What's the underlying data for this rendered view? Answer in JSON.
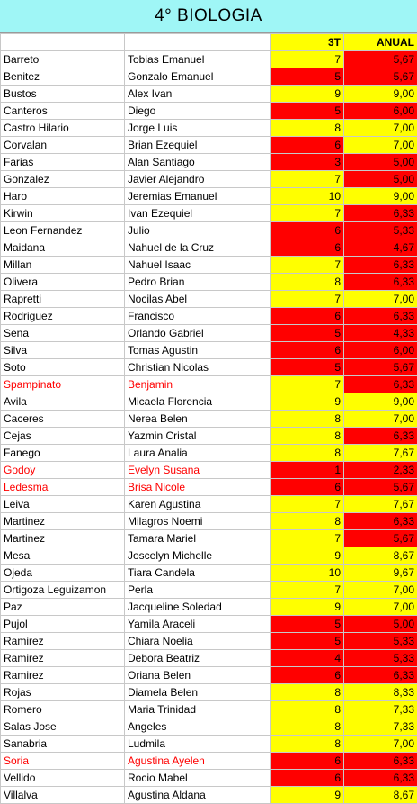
{
  "title": "4° BIOLOGIA",
  "colors": {
    "title_bg": "#9ff6f6",
    "pass": "#ffff00",
    "fail": "#ff0000",
    "flagged_text": "#ff0000"
  },
  "headers": {
    "apellido": "",
    "nombre": "",
    "trimestre": "3T",
    "anual": "ANUAL"
  },
  "rows": [
    {
      "apellido": "Barreto",
      "nombre": "Tobias Emanuel",
      "t3": "7",
      "anual": "5,67",
      "t3_status": "pass",
      "anual_status": "fail",
      "flagged": false
    },
    {
      "apellido": "Benitez",
      "nombre": "Gonzalo Emanuel",
      "t3": "5",
      "anual": "5,67",
      "t3_status": "fail",
      "anual_status": "fail",
      "flagged": false
    },
    {
      "apellido": "Bustos",
      "nombre": "Alex Ivan",
      "t3": "9",
      "anual": "9,00",
      "t3_status": "pass",
      "anual_status": "pass",
      "flagged": false
    },
    {
      "apellido": "Canteros",
      "nombre": "Diego",
      "t3": "5",
      "anual": "6,00",
      "t3_status": "fail",
      "anual_status": "fail",
      "flagged": false
    },
    {
      "apellido": "Castro Hilario",
      "nombre": "Jorge Luis",
      "t3": "8",
      "anual": "7,00",
      "t3_status": "pass",
      "anual_status": "pass",
      "flagged": false
    },
    {
      "apellido": "Corvalan",
      "nombre": "Brian Ezequiel",
      "t3": "6",
      "anual": "7,00",
      "t3_status": "fail",
      "anual_status": "pass",
      "flagged": false
    },
    {
      "apellido": "Farias",
      "nombre": "Alan Santiago",
      "t3": "3",
      "anual": "5,00",
      "t3_status": "fail",
      "anual_status": "fail",
      "flagged": false
    },
    {
      "apellido": "Gonzalez",
      "nombre": "Javier Alejandro",
      "t3": "7",
      "anual": "5,00",
      "t3_status": "pass",
      "anual_status": "fail",
      "flagged": false
    },
    {
      "apellido": "Haro",
      "nombre": "Jeremias Emanuel",
      "t3": "10",
      "anual": "9,00",
      "t3_status": "pass",
      "anual_status": "pass",
      "flagged": false
    },
    {
      "apellido": "Kirwin",
      "nombre": "Ivan Ezequiel",
      "t3": "7",
      "anual": "6,33",
      "t3_status": "pass",
      "anual_status": "fail",
      "flagged": false
    },
    {
      "apellido": "Leon Fernandez",
      "nombre": "Julio",
      "t3": "6",
      "anual": "5,33",
      "t3_status": "fail",
      "anual_status": "fail",
      "flagged": false
    },
    {
      "apellido": "Maidana",
      "nombre": "Nahuel de la Cruz",
      "t3": "6",
      "anual": "4,67",
      "t3_status": "fail",
      "anual_status": "fail",
      "flagged": false
    },
    {
      "apellido": "Millan",
      "nombre": "Nahuel Isaac",
      "t3": "7",
      "anual": "6,33",
      "t3_status": "pass",
      "anual_status": "fail",
      "flagged": false
    },
    {
      "apellido": "Olivera",
      "nombre": "Pedro Brian",
      "t3": "8",
      "anual": "6,33",
      "t3_status": "pass",
      "anual_status": "fail",
      "flagged": false
    },
    {
      "apellido": "Rapretti",
      "nombre": "Nocilas Abel",
      "t3": "7",
      "anual": "7,00",
      "t3_status": "pass",
      "anual_status": "pass",
      "flagged": false
    },
    {
      "apellido": "Rodriguez",
      "nombre": "Francisco",
      "t3": "6",
      "anual": "6,33",
      "t3_status": "fail",
      "anual_status": "fail",
      "flagged": false
    },
    {
      "apellido": "Sena",
      "nombre": "Orlando Gabriel",
      "t3": "5",
      "anual": "4,33",
      "t3_status": "fail",
      "anual_status": "fail",
      "flagged": false
    },
    {
      "apellido": "Silva",
      "nombre": "Tomas Agustin",
      "t3": "6",
      "anual": "6,00",
      "t3_status": "fail",
      "anual_status": "fail",
      "flagged": false
    },
    {
      "apellido": "Soto",
      "nombre": "Christian Nicolas",
      "t3": "5",
      "anual": "5,67",
      "t3_status": "fail",
      "anual_status": "fail",
      "flagged": false
    },
    {
      "apellido": "Spampinato",
      "nombre": "Benjamin",
      "t3": "7",
      "anual": "6,33",
      "t3_status": "pass",
      "anual_status": "fail",
      "flagged": true
    },
    {
      "apellido": "Avila",
      "nombre": "Micaela Florencia",
      "t3": "9",
      "anual": "9,00",
      "t3_status": "pass",
      "anual_status": "pass",
      "flagged": false
    },
    {
      "apellido": "Caceres",
      "nombre": "Nerea Belen",
      "t3": "8",
      "anual": "7,00",
      "t3_status": "pass",
      "anual_status": "pass",
      "flagged": false
    },
    {
      "apellido": "Cejas",
      "nombre": "Yazmin Cristal",
      "t3": "8",
      "anual": "6,33",
      "t3_status": "pass",
      "anual_status": "fail",
      "flagged": false
    },
    {
      "apellido": "Fanego",
      "nombre": "Laura Analia",
      "t3": "8",
      "anual": "7,67",
      "t3_status": "pass",
      "anual_status": "pass",
      "flagged": false
    },
    {
      "apellido": "Godoy",
      "nombre": "Evelyn Susana",
      "t3": "1",
      "anual": "2,33",
      "t3_status": "fail",
      "anual_status": "fail",
      "flagged": true
    },
    {
      "apellido": "Ledesma",
      "nombre": "Brisa Nicole",
      "t3": "6",
      "anual": "5,67",
      "t3_status": "fail",
      "anual_status": "fail",
      "flagged": true
    },
    {
      "apellido": "Leiva",
      "nombre": "Karen Agustina",
      "t3": "7",
      "anual": "7,67",
      "t3_status": "pass",
      "anual_status": "pass",
      "flagged": false
    },
    {
      "apellido": "Martinez",
      "nombre": "Milagros Noemi",
      "t3": "8",
      "anual": "6,33",
      "t3_status": "pass",
      "anual_status": "fail",
      "flagged": false
    },
    {
      "apellido": "Martinez",
      "nombre": "Tamara Mariel",
      "t3": "7",
      "anual": "5,67",
      "t3_status": "pass",
      "anual_status": "fail",
      "flagged": false
    },
    {
      "apellido": "Mesa",
      "nombre": "Joscelyn Michelle",
      "t3": "9",
      "anual": "8,67",
      "t3_status": "pass",
      "anual_status": "pass",
      "flagged": false
    },
    {
      "apellido": "Ojeda",
      "nombre": "Tiara Candela",
      "t3": "10",
      "anual": "9,67",
      "t3_status": "pass",
      "anual_status": "pass",
      "flagged": false
    },
    {
      "apellido": "Ortigoza Leguizamon",
      "nombre": "Perla",
      "t3": "7",
      "anual": "7,00",
      "t3_status": "pass",
      "anual_status": "pass",
      "flagged": false
    },
    {
      "apellido": "Paz",
      "nombre": "Jacqueline Soledad",
      "t3": "9",
      "anual": "7,00",
      "t3_status": "pass",
      "anual_status": "pass",
      "flagged": false
    },
    {
      "apellido": "Pujol",
      "nombre": "Yamila Araceli",
      "t3": "5",
      "anual": "5,00",
      "t3_status": "fail",
      "anual_status": "fail",
      "flagged": false
    },
    {
      "apellido": "Ramirez",
      "nombre": "Chiara Noelia",
      "t3": "5",
      "anual": "5,33",
      "t3_status": "fail",
      "anual_status": "fail",
      "flagged": false
    },
    {
      "apellido": "Ramirez",
      "nombre": "Debora Beatriz",
      "t3": "4",
      "anual": "5,33",
      "t3_status": "fail",
      "anual_status": "fail",
      "flagged": false
    },
    {
      "apellido": "Ramirez",
      "nombre": "Oriana Belen",
      "t3": "6",
      "anual": "6,33",
      "t3_status": "fail",
      "anual_status": "fail",
      "flagged": false
    },
    {
      "apellido": "Rojas",
      "nombre": "Diamela Belen",
      "t3": "8",
      "anual": "8,33",
      "t3_status": "pass",
      "anual_status": "pass",
      "flagged": false
    },
    {
      "apellido": "Romero",
      "nombre": "Maria Trinidad",
      "t3": "8",
      "anual": "7,33",
      "t3_status": "pass",
      "anual_status": "pass",
      "flagged": false
    },
    {
      "apellido": "Salas Jose",
      "nombre": "Angeles",
      "t3": "8",
      "anual": "7,33",
      "t3_status": "pass",
      "anual_status": "pass",
      "flagged": false
    },
    {
      "apellido": "Sanabria",
      "nombre": "Ludmila",
      "t3": "8",
      "anual": "7,00",
      "t3_status": "pass",
      "anual_status": "pass",
      "flagged": false
    },
    {
      "apellido": "Soria",
      "nombre": "Agustina Ayelen",
      "t3": "6",
      "anual": "6,33",
      "t3_status": "fail",
      "anual_status": "fail",
      "flagged": true
    },
    {
      "apellido": "Vellido",
      "nombre": "Rocio Mabel",
      "t3": "6",
      "anual": "6,33",
      "t3_status": "fail",
      "anual_status": "fail",
      "flagged": false
    },
    {
      "apellido": "Villalva",
      "nombre": "Agustina Aldana",
      "t3": "9",
      "anual": "8,67",
      "t3_status": "pass",
      "anual_status": "pass",
      "flagged": false
    }
  ]
}
